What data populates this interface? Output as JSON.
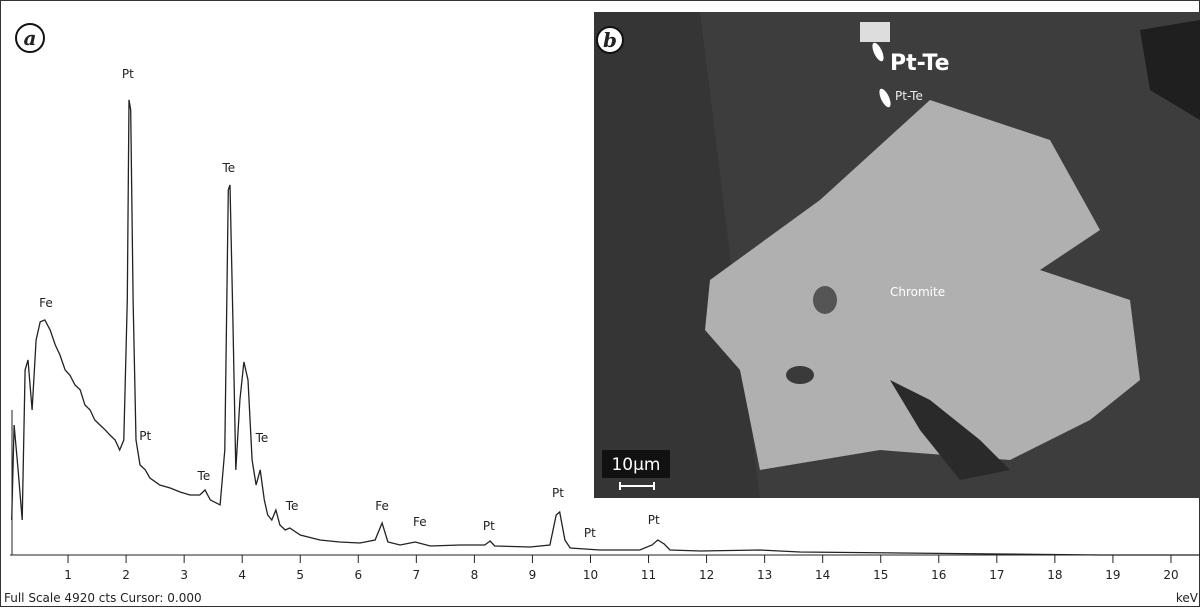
{
  "chart_data": {
    "type": "line",
    "panel_label": "a",
    "x": [
      0.03,
      0.07,
      0.14,
      0.21,
      0.26,
      0.31,
      0.38,
      0.45,
      0.52,
      0.6,
      0.69,
      0.78,
      0.86,
      0.95,
      1.03,
      1.12,
      1.21,
      1.29,
      1.38,
      1.46,
      1.55,
      1.64,
      1.72,
      1.81,
      1.89,
      1.96,
      2.02,
      2.05,
      2.08,
      2.12,
      2.17,
      2.24,
      2.33,
      2.41,
      2.58,
      2.76,
      2.93,
      3.1,
      3.27,
      3.36,
      3.45,
      3.62,
      3.7,
      3.76,
      3.79,
      3.84,
      3.89,
      3.96,
      4.03,
      4.1,
      4.17,
      4.24,
      4.31,
      4.38,
      4.44,
      4.51,
      4.58,
      4.65,
      4.74,
      4.82,
      5.0,
      5.34,
      5.68,
      6.03,
      6.29,
      6.41,
      6.51,
      6.72,
      6.98,
      7.24,
      7.75,
      8.18,
      8.27,
      8.35,
      8.96,
      9.3,
      9.41,
      9.47,
      9.56,
      9.65,
      10.16,
      10.85,
      11.06,
      11.16,
      11.27,
      11.37,
      11.89,
      12.92,
      13.61,
      15.33,
      17.05,
      18.78,
      20.5
    ],
    "series": [
      {
        "color": "#222222",
        "values": [
          316,
          1174,
          768,
          316,
          1671,
          1761,
          1309,
          1941,
          2104,
          2122,
          2032,
          1896,
          1806,
          1671,
          1625,
          1535,
          1490,
          1355,
          1309,
          1219,
          1174,
          1129,
          1084,
          1038,
          948,
          1038,
          2303,
          4109,
          4018,
          2303,
          1038,
          813,
          768,
          695,
          632,
          605,
          569,
          542,
          542,
          587,
          497,
          452,
          948,
          3296,
          3341,
          2122,
          768,
          1400,
          1743,
          1580,
          858,
          632,
          768,
          497,
          361,
          316,
          406,
          271,
          226,
          244,
          181,
          135,
          117,
          108,
          135,
          289,
          117,
          90,
          117,
          81,
          90,
          90,
          126,
          81,
          72,
          90,
          361,
          388,
          135,
          63,
          45,
          45,
          90,
          135,
          99,
          45,
          36,
          45,
          27,
          18,
          9,
          0,
          0
        ]
      }
    ],
    "xlim": [
      0,
      20.5
    ],
    "ylim": [
      0,
      4920
    ],
    "xticks": [
      1,
      2,
      3,
      4,
      5,
      6,
      7,
      8,
      9,
      10,
      11,
      12,
      13,
      14,
      15,
      16,
      17,
      18,
      19,
      20
    ],
    "x_unit": "keV",
    "footer": "Full Scale 4920 cts Cursor: 0.000",
    "annotations": [
      {
        "text": "Fe",
        "x": 0.62,
        "y": 2239
      },
      {
        "text": "Pt",
        "x": 2.03,
        "y": 4307
      },
      {
        "text": "Pt",
        "x": 2.33,
        "y": 1038
      },
      {
        "text": "Te",
        "x": 3.77,
        "y": 3458
      },
      {
        "text": "Te",
        "x": 3.34,
        "y": 677
      },
      {
        "text": "Te",
        "x": 4.34,
        "y": 1020
      },
      {
        "text": "Te",
        "x": 4.86,
        "y": 406
      },
      {
        "text": "Fe",
        "x": 6.41,
        "y": 406
      },
      {
        "text": "Fe",
        "x": 7.06,
        "y": 262
      },
      {
        "text": "Pt",
        "x": 8.25,
        "y": 226
      },
      {
        "text": "Pt",
        "x": 9.44,
        "y": 524
      },
      {
        "text": "Pt",
        "x": 9.99,
        "y": 163
      },
      {
        "text": "Pt",
        "x": 11.09,
        "y": 280
      }
    ]
  },
  "image": {
    "panel_label": "b",
    "labels": [
      "Pt-Te",
      "Pt-Te",
      "Chromite"
    ],
    "scale_bar": "10µm"
  }
}
